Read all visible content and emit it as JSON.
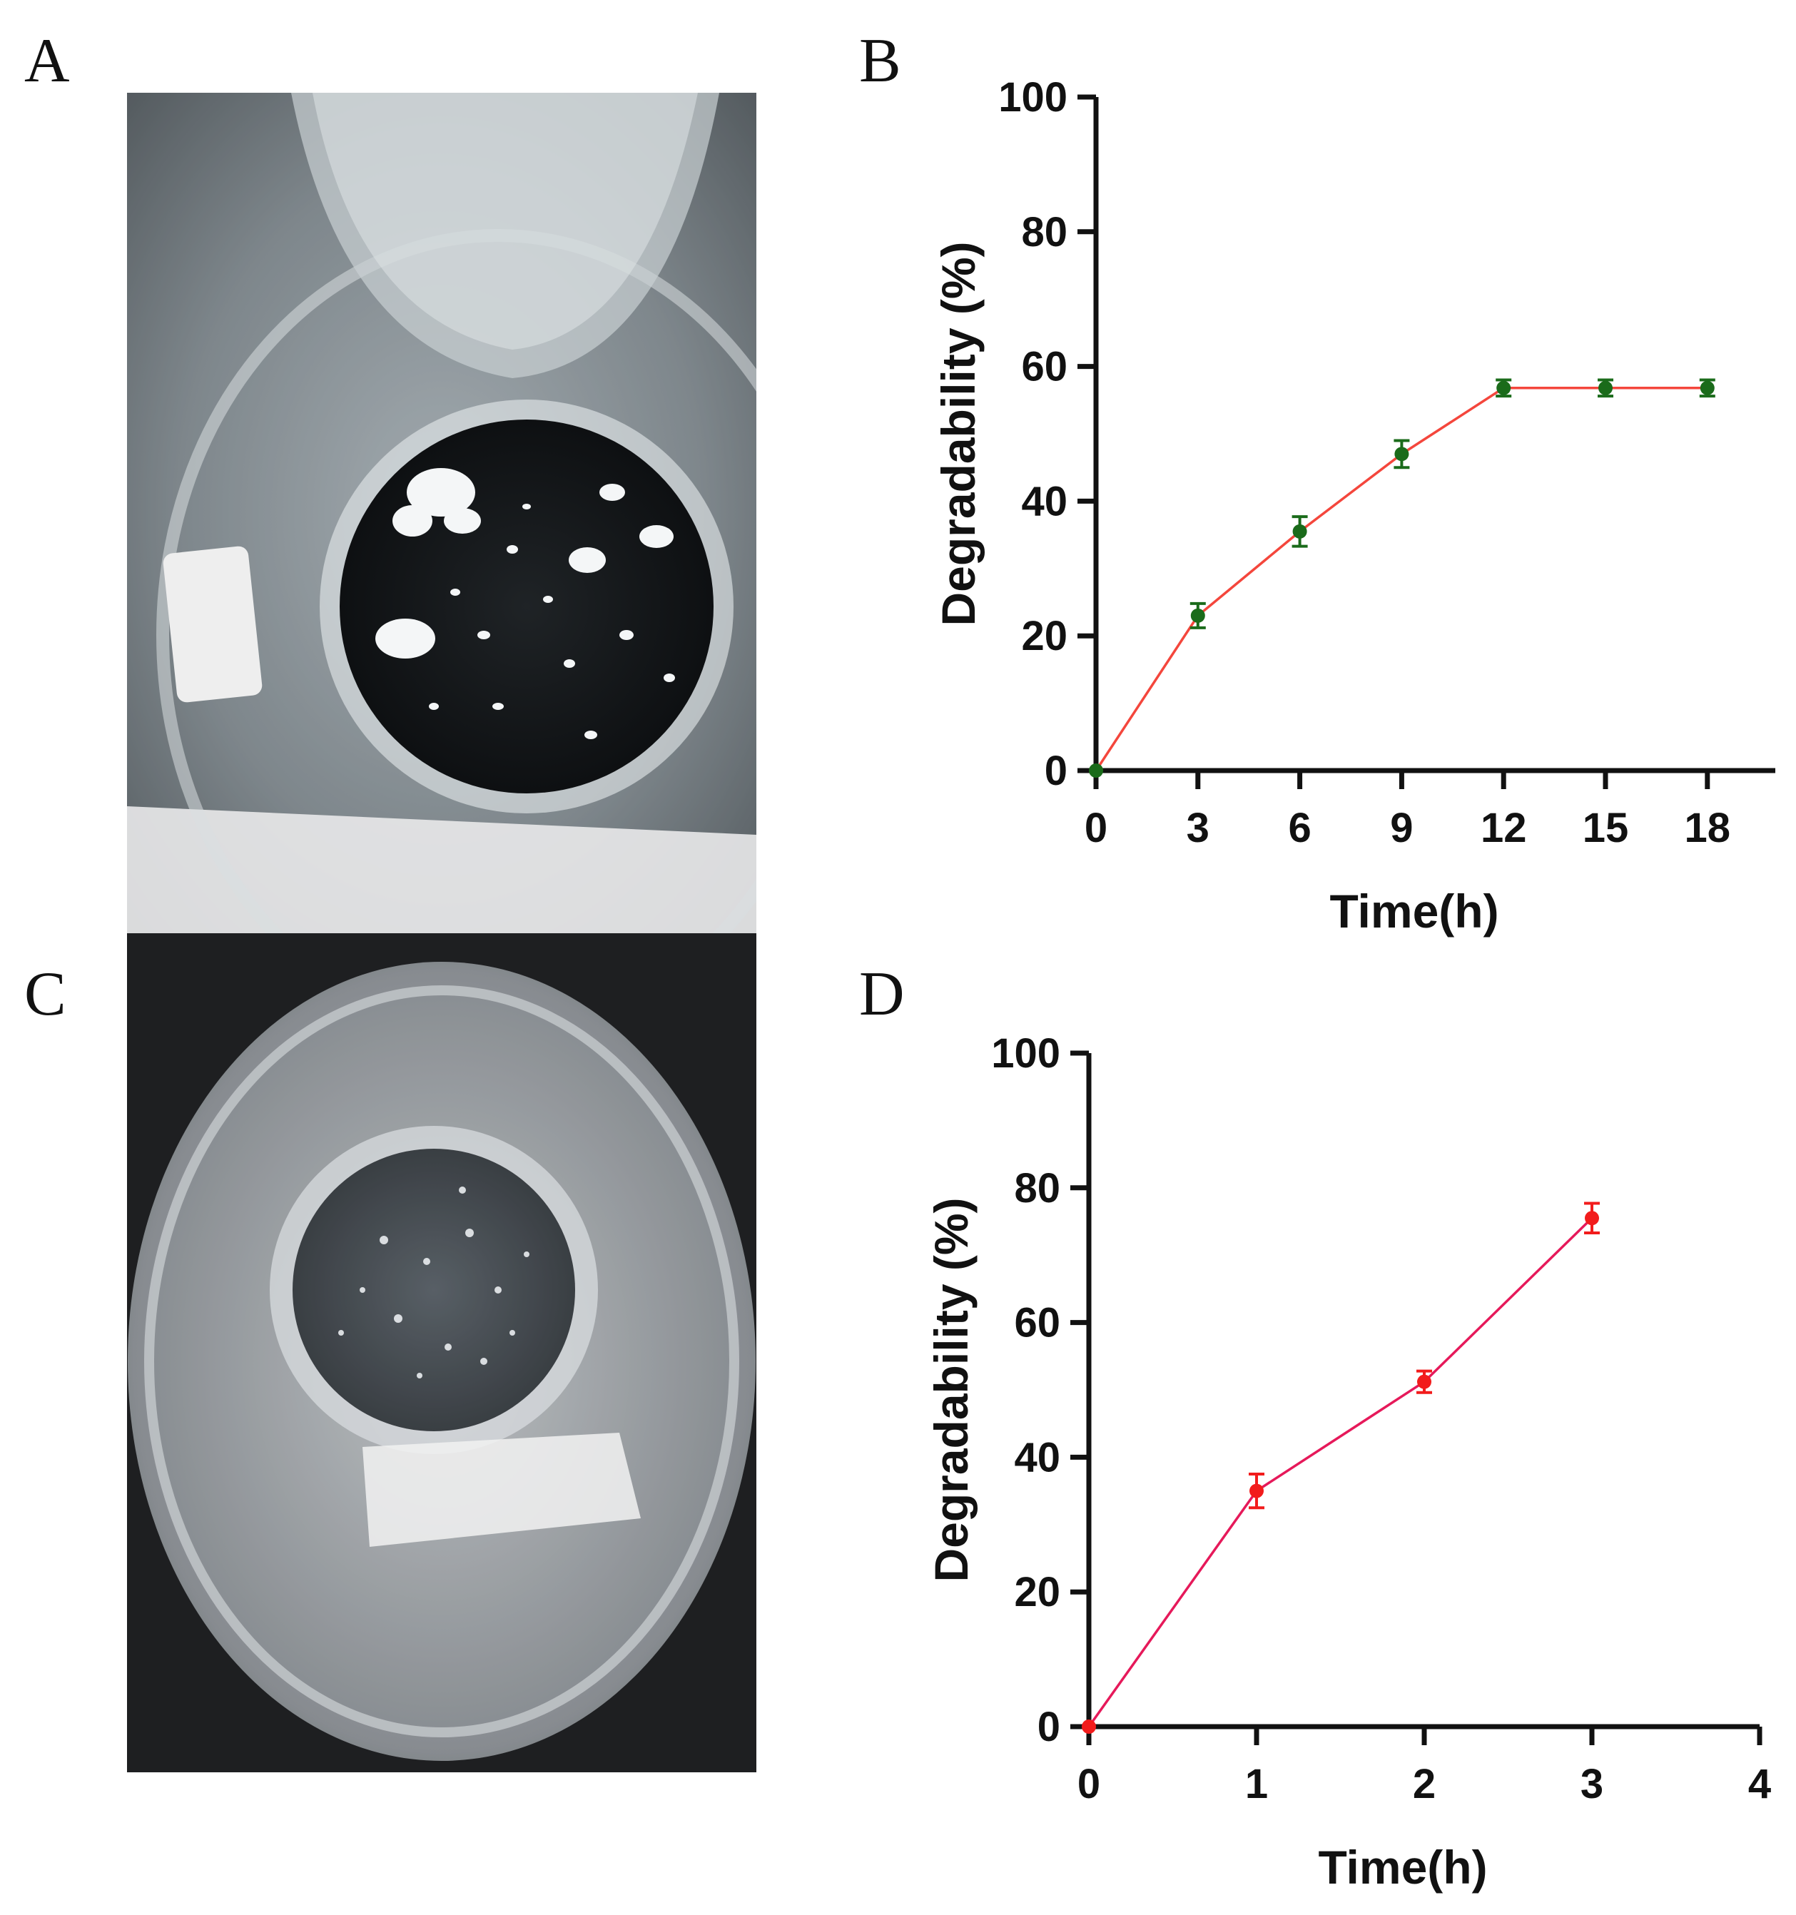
{
  "panels": {
    "a": "A",
    "b": "B",
    "c": "C",
    "d": "D"
  },
  "chart_data": [
    {
      "panel": "B",
      "type": "line",
      "xlabel": "Time(h)",
      "ylabel": "Degradability (%)",
      "xlim": [
        0,
        20
      ],
      "ylim": [
        0,
        100
      ],
      "xticks": [
        0,
        3,
        6,
        9,
        12,
        15,
        18
      ],
      "yticks": [
        0,
        20,
        40,
        60,
        80,
        100
      ],
      "grid": false,
      "line_color": "#f4463c",
      "marker_color": "#1a6b1a",
      "series": [
        {
          "x": [
            0,
            3,
            6,
            9,
            12,
            15,
            18
          ],
          "values": [
            0,
            23,
            35.5,
            47,
            56.8,
            56.8,
            56.8
          ],
          "errors": [
            0,
            1.8,
            2.2,
            2.0,
            1.2,
            1.2,
            1.2
          ]
        }
      ]
    },
    {
      "panel": "D",
      "type": "line",
      "xlabel": "Time(h)",
      "ylabel": "Degradability (%)",
      "xlim": [
        0,
        4
      ],
      "ylim": [
        0,
        100
      ],
      "xticks": [
        0,
        1,
        2,
        3,
        4
      ],
      "yticks": [
        0,
        20,
        40,
        60,
        80,
        100
      ],
      "grid": false,
      "line_color": "#e6195a",
      "marker_color": "#f21c1c",
      "series": [
        {
          "x": [
            0,
            1,
            2,
            3
          ],
          "values": [
            0,
            35,
            51.2,
            75.5
          ],
          "errors": [
            0,
            2.5,
            1.6,
            2.2
          ]
        }
      ]
    }
  ]
}
